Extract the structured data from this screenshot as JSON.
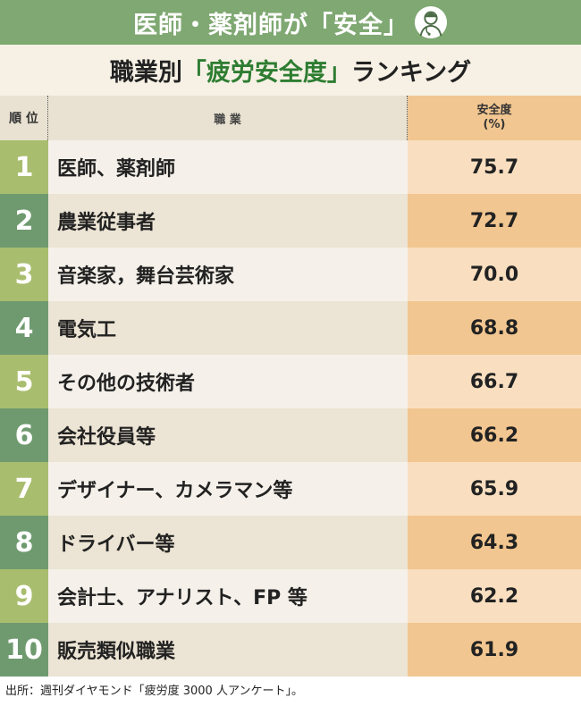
{
  "banner": {
    "title": "医師・薬剤師が「安全」",
    "icon": "doctor-icon"
  },
  "subtitle": {
    "pre": "職業別",
    "highlight": "「疲労安全度」",
    "post": "ランキング"
  },
  "header": {
    "rank": "順 位",
    "job": "職 業",
    "value_line1": "安全度",
    "value_line2": "(%)"
  },
  "chart_data": {
    "type": "table",
    "columns": [
      "順 位",
      "職 業",
      "安全度(%)"
    ],
    "rows": [
      {
        "rank": "1",
        "job": "医師、薬剤師",
        "value": "75.7"
      },
      {
        "rank": "2",
        "job": "農業従事者",
        "value": "72.7"
      },
      {
        "rank": "3",
        "job": "音楽家，舞台芸術家",
        "value": "70.0"
      },
      {
        "rank": "4",
        "job": "電気工",
        "value": "68.8"
      },
      {
        "rank": "5",
        "job": "その他の技術者",
        "value": "66.7"
      },
      {
        "rank": "6",
        "job": "会社役員等",
        "value": "66.2"
      },
      {
        "rank": "7",
        "job": "デザイナー、カメラマン等",
        "value": "65.9"
      },
      {
        "rank": "8",
        "job": "ドライバー等",
        "value": "64.3"
      },
      {
        "rank": "9",
        "job": "会計士、アナリスト、FP 等",
        "value": "62.2"
      },
      {
        "rank": "10",
        "job": "販売類似職業",
        "value": "61.9"
      }
    ]
  },
  "source": "出所：週刊ダイヤモンド「疲労度 3000 人アンケート」。",
  "colors": {
    "banner": "#7fa872",
    "rank_light": "#a9bd6e",
    "rank_dark": "#6f9a6f",
    "value_light": "#f9dfc0",
    "value_dark": "#f2c690",
    "highlight": "#2e7d32"
  }
}
